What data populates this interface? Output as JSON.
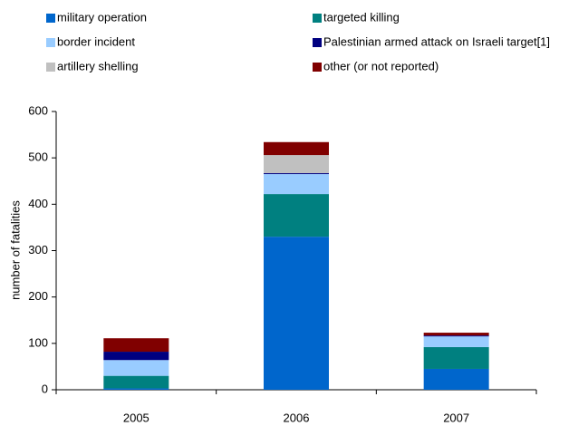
{
  "chart_data": {
    "type": "stacked_bar",
    "categories": [
      "2005",
      "2006",
      "2007"
    ],
    "series": [
      {
        "name": "military operation",
        "color": "#0066cc",
        "values": [
          3,
          330,
          45
        ]
      },
      {
        "name": "targeted killing",
        "color": "#008080",
        "values": [
          27,
          92,
          47
        ]
      },
      {
        "name": "border incident",
        "color": "#99ccff",
        "values": [
          34,
          43,
          23
        ]
      },
      {
        "name": "Palestinian armed attack on Israeli target[1]",
        "color": "#000080",
        "values": [
          18,
          2,
          2
        ]
      },
      {
        "name": "artillery shelling",
        "color": "#c0c0c0",
        "values": [
          0,
          39,
          0
        ]
      },
      {
        "name": "other (or not reported)",
        "color": "#800000",
        "values": [
          29,
          28,
          6
        ]
      }
    ],
    "y_axis_label": "number of fatalities",
    "ylim": [
      0,
      600
    ],
    "yticks": [
      0,
      100,
      200,
      300,
      400,
      500,
      600
    ],
    "grid": false,
    "legend": "top"
  }
}
